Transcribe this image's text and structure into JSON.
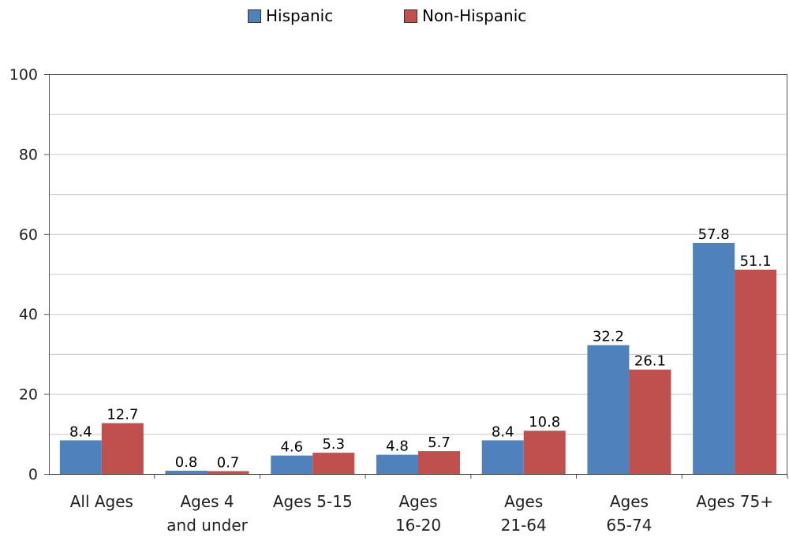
{
  "chart_data": {
    "type": "bar",
    "categories": [
      [
        "All Ages"
      ],
      [
        "Ages 4",
        "and under"
      ],
      [
        "Ages 5-15"
      ],
      [
        "Ages",
        "16-20"
      ],
      [
        "Ages",
        "21-64"
      ],
      [
        "Ages",
        "65-74"
      ],
      [
        "Ages 75+"
      ]
    ],
    "series": [
      {
        "name": "Hispanic",
        "color": "#4f81bd",
        "values": [
          8.4,
          0.8,
          4.6,
          4.8,
          8.4,
          32.2,
          57.8
        ],
        "labels": [
          "8.4",
          "0.8",
          "4.6",
          "4.8",
          "8.4",
          "32.2",
          "57.8"
        ]
      },
      {
        "name": "Non-Hispanic",
        "color": "#c0504d",
        "values": [
          12.7,
          0.7,
          5.3,
          5.7,
          10.8,
          26.1,
          51.1
        ],
        "labels": [
          "12.7",
          "0.7",
          "5.3",
          "5.7",
          "10.8",
          "26.1",
          "51.1"
        ]
      }
    ],
    "ylim": [
      0,
      100
    ],
    "yticks": [
      0,
      20,
      40,
      60,
      80,
      100
    ],
    "ytick_labels": [
      "0",
      "20",
      "40",
      "60",
      "80",
      "100"
    ],
    "minor_gridlines": [
      10,
      30,
      50,
      70,
      90
    ],
    "grid": true,
    "legend_position": "top-center"
  }
}
